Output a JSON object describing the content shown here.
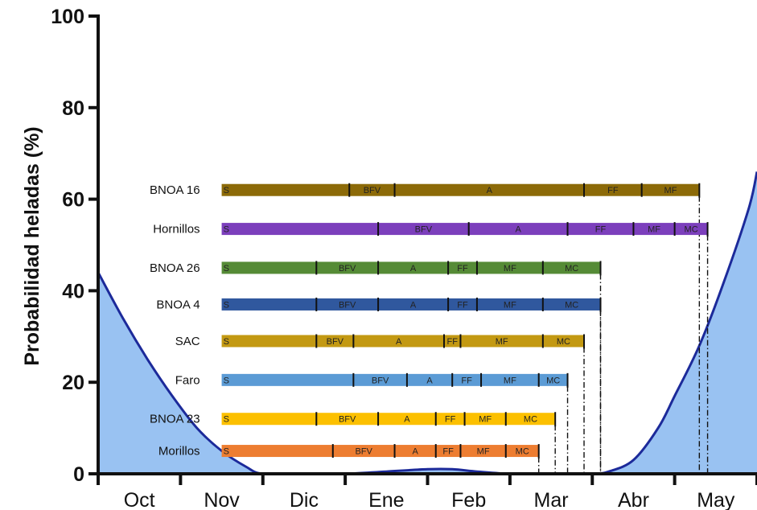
{
  "chart_data": {
    "type": "area",
    "ylabel": "Probabilidad heladas (%)",
    "xlabel": "",
    "ylim": [
      0,
      100
    ],
    "yticks": [
      0,
      20,
      40,
      60,
      80,
      100
    ],
    "months": [
      "Oct",
      "Nov",
      "Dic",
      "Ene",
      "Feb",
      "Mar",
      "Abr",
      "May"
    ],
    "colors": {
      "area_fill": "#99c2f2",
      "area_line": "#1c2a9a",
      "axis": "#111111"
    },
    "frost_curve": {
      "x": [
        0.0,
        0.3,
        0.6,
        0.9,
        1.2,
        1.5,
        1.8,
        2.0,
        2.5,
        3.0,
        3.5,
        4.0,
        4.3,
        4.6,
        5.0,
        5.5,
        6.0,
        6.2,
        6.5,
        6.8,
        7.0,
        7.3,
        7.6,
        7.9,
        8.0
      ],
      "y": [
        44,
        34,
        25,
        17,
        10,
        5,
        1.5,
        0,
        0,
        0,
        0.5,
        1,
        1,
        0.5,
        0,
        0,
        0,
        0.5,
        3,
        10,
        17,
        28,
        42,
        58,
        66
      ]
    },
    "varieties": [
      {
        "name": "BNOA 16",
        "color": "#8c6a08",
        "y_pos": 62,
        "stages": [
          {
            "label": "S",
            "start": 1.5,
            "end": 3.05
          },
          {
            "label": "BFV",
            "start": 3.05,
            "end": 3.6
          },
          {
            "label": "A",
            "start": 3.6,
            "end": 5.9
          },
          {
            "label": "FF",
            "start": 5.9,
            "end": 6.6
          },
          {
            "label": "MF",
            "start": 6.6,
            "end": 7.3
          }
        ]
      },
      {
        "name": "Hornillos",
        "color": "#7c3fbc",
        "y_pos": 53.5,
        "stages": [
          {
            "label": "S",
            "start": 1.5,
            "end": 3.4
          },
          {
            "label": "BFV",
            "start": 3.4,
            "end": 4.5
          },
          {
            "label": "A",
            "start": 4.5,
            "end": 5.7
          },
          {
            "label": "FF",
            "start": 5.7,
            "end": 6.5
          },
          {
            "label": "MF",
            "start": 6.5,
            "end": 7.0
          },
          {
            "label": "MC",
            "start": 7.0,
            "end": 7.4
          }
        ]
      },
      {
        "name": "BNOA 26",
        "color": "#558b36",
        "y_pos": 45,
        "stages": [
          {
            "label": "S",
            "start": 1.5,
            "end": 2.65
          },
          {
            "label": "BFV",
            "start": 2.65,
            "end": 3.4
          },
          {
            "label": "A",
            "start": 3.4,
            "end": 4.25
          },
          {
            "label": "FF",
            "start": 4.25,
            "end": 4.6
          },
          {
            "label": "MF",
            "start": 4.6,
            "end": 5.4
          },
          {
            "label": "MC",
            "start": 5.4,
            "end": 6.1
          }
        ]
      },
      {
        "name": "BNOA 4",
        "color": "#30589e",
        "y_pos": 37,
        "stages": [
          {
            "label": "S",
            "start": 1.5,
            "end": 2.65
          },
          {
            "label": "BFV",
            "start": 2.65,
            "end": 3.4
          },
          {
            "label": "A",
            "start": 3.4,
            "end": 4.25
          },
          {
            "label": "FF",
            "start": 4.25,
            "end": 4.6
          },
          {
            "label": "MF",
            "start": 4.6,
            "end": 5.4
          },
          {
            "label": "MC",
            "start": 5.4,
            "end": 6.1
          }
        ]
      },
      {
        "name": "SAC",
        "color": "#c39912",
        "y_pos": 29,
        "stages": [
          {
            "label": "S",
            "start": 1.5,
            "end": 2.65
          },
          {
            "label": "BFV",
            "start": 2.65,
            "end": 3.1
          },
          {
            "label": "A",
            "start": 3.1,
            "end": 4.2
          },
          {
            "label": "FF",
            "start": 4.2,
            "end": 4.4
          },
          {
            "label": "MF",
            "start": 4.4,
            "end": 5.4
          },
          {
            "label": "MC",
            "start": 5.4,
            "end": 5.9
          }
        ]
      },
      {
        "name": "Faro",
        "color": "#5b9bd5",
        "y_pos": 20.5,
        "stages": [
          {
            "label": "S",
            "start": 1.5,
            "end": 3.1
          },
          {
            "label": "BFV",
            "start": 3.1,
            "end": 3.75
          },
          {
            "label": "A",
            "start": 3.75,
            "end": 4.3
          },
          {
            "label": "FF",
            "start": 4.3,
            "end": 4.65
          },
          {
            "label": "MF",
            "start": 4.65,
            "end": 5.35
          },
          {
            "label": "MC",
            "start": 5.35,
            "end": 5.7
          }
        ]
      },
      {
        "name": "BNOA 23",
        "color": "#fcc000",
        "y_pos": 12,
        "stages": [
          {
            "label": "S",
            "start": 1.5,
            "end": 2.65
          },
          {
            "label": "BFV",
            "start": 2.65,
            "end": 3.4
          },
          {
            "label": "A",
            "start": 3.4,
            "end": 4.1
          },
          {
            "label": "FF",
            "start": 4.1,
            "end": 4.45
          },
          {
            "label": "MF",
            "start": 4.45,
            "end": 4.95
          },
          {
            "label": "MC",
            "start": 4.95,
            "end": 5.55
          }
        ]
      },
      {
        "name": "Morillos",
        "color": "#ed7d31",
        "y_pos": 5,
        "stages": [
          {
            "label": "S",
            "start": 1.5,
            "end": 2.85
          },
          {
            "label": "BFV",
            "start": 2.85,
            "end": 3.6
          },
          {
            "label": "A",
            "start": 3.6,
            "end": 4.1
          },
          {
            "label": "FF",
            "start": 4.1,
            "end": 4.4
          },
          {
            "label": "MF",
            "start": 4.4,
            "end": 4.95
          },
          {
            "label": "MC",
            "start": 4.95,
            "end": 5.35
          }
        ]
      }
    ]
  }
}
